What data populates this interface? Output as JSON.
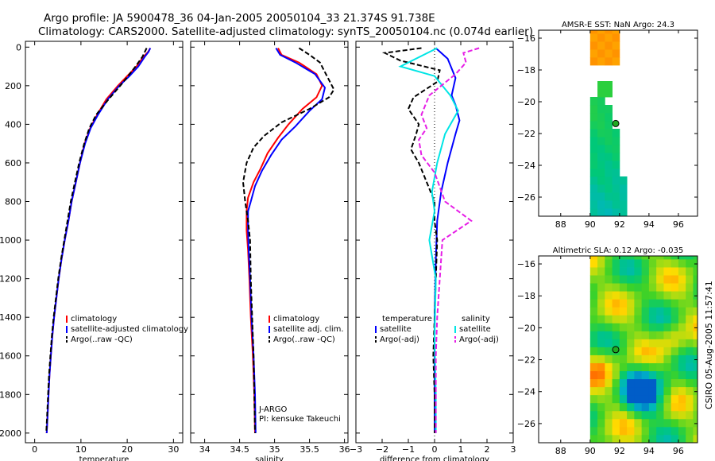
{
  "header": {
    "line1": "Argo profile: JA 5900478_36 04-Jan-2005 20050104_33 21.374S 91.738E",
    "line2": "Climatology: CARS2000. Satellite-adjusted climatology: synTS_20050104.nc (0.074d earlier)"
  },
  "side_label": "CSIRO 05-Aug-2005 11:57:41",
  "colors": {
    "red": "#ff0000",
    "blue": "#0000ff",
    "black": "#000000",
    "cyan": "#00e5e5",
    "magenta": "#e61ee6"
  },
  "chart_data": [
    {
      "type": "line",
      "id": "temperature",
      "xlabel": "temperature",
      "xlim": [
        -2,
        32
      ],
      "ylim": [
        2050,
        -30
      ],
      "x_ticks": [
        0,
        10,
        20,
        30
      ],
      "y_ticks": [
        0,
        200,
        400,
        600,
        800,
        1000,
        1200,
        1400,
        1600,
        1800,
        2000
      ],
      "legend": [
        "climatology",
        "satellite-adjusted climatology",
        "Argo(..raw -QC)"
      ],
      "series": [
        {
          "name": "climatology",
          "color": "red",
          "dash": false,
          "points": [
            [
              25,
              5
            ],
            [
              24.5,
              25
            ],
            [
              23.5,
              50
            ],
            [
              22,
              100
            ],
            [
              20,
              150
            ],
            [
              18,
              200
            ],
            [
              15.5,
              270
            ],
            [
              13.5,
              350
            ],
            [
              12,
              420
            ],
            [
              10.8,
              500
            ],
            [
              9.8,
              600
            ],
            [
              8.9,
              700
            ],
            [
              8,
              800
            ],
            [
              7.3,
              900
            ],
            [
              6.5,
              1000
            ],
            [
              5.8,
              1100
            ],
            [
              5.2,
              1200
            ],
            [
              4.7,
              1300
            ],
            [
              4.2,
              1400
            ],
            [
              3.8,
              1500
            ],
            [
              3.5,
              1600
            ],
            [
              3.2,
              1700
            ],
            [
              3,
              1800
            ],
            [
              2.8,
              1900
            ],
            [
              2.6,
              2000
            ]
          ]
        },
        {
          "name": "satellite-adjusted climatology",
          "color": "blue",
          "dash": false,
          "points": [
            [
              25,
              5
            ],
            [
              24.6,
              25
            ],
            [
              23.8,
              50
            ],
            [
              22.4,
              100
            ],
            [
              20.5,
              150
            ],
            [
              18.3,
              200
            ],
            [
              15.8,
              270
            ],
            [
              13.7,
              350
            ],
            [
              12.1,
              420
            ],
            [
              10.9,
              500
            ],
            [
              9.8,
              600
            ],
            [
              8.9,
              700
            ],
            [
              8,
              800
            ],
            [
              7.3,
              900
            ],
            [
              6.5,
              1000
            ],
            [
              5.8,
              1100
            ],
            [
              5.2,
              1200
            ],
            [
              4.7,
              1300
            ],
            [
              4.2,
              1400
            ],
            [
              3.8,
              1500
            ],
            [
              3.5,
              1600
            ],
            [
              3.2,
              1700
            ],
            [
              3,
              1800
            ],
            [
              2.8,
              1900
            ],
            [
              2.6,
              2000
            ]
          ]
        },
        {
          "name": "Argo(..raw -QC)",
          "color": "black",
          "dash": true,
          "points": [
            [
              24.2,
              5
            ],
            [
              23.8,
              25
            ],
            [
              23.3,
              50
            ],
            [
              21.8,
              100
            ],
            [
              20.2,
              150
            ],
            [
              18.5,
              200
            ],
            [
              16,
              270
            ],
            [
              13.3,
              350
            ],
            [
              11.8,
              420
            ],
            [
              10.7,
              500
            ],
            [
              9.6,
              600
            ],
            [
              8.7,
              700
            ],
            [
              7.8,
              800
            ],
            [
              7.1,
              900
            ],
            [
              6.4,
              1000
            ],
            [
              5.7,
              1100
            ],
            [
              5.1,
              1200
            ],
            [
              4.6,
              1300
            ],
            [
              4.1,
              1400
            ],
            [
              3.7,
              1500
            ],
            [
              3.4,
              1600
            ],
            [
              3.1,
              1700
            ],
            [
              2.9,
              1800
            ],
            [
              2.7,
              1900
            ],
            [
              2.5,
              2000
            ]
          ]
        }
      ]
    },
    {
      "type": "line",
      "id": "salinity",
      "xlabel": "salinity",
      "xlim": [
        33.8,
        36.05
      ],
      "ylim": [
        2050,
        -30
      ],
      "x_ticks": [
        34,
        34.5,
        35,
        35.5,
        36
      ],
      "legend": [
        "climatology",
        "satellite adj. clim.",
        "Argo(..raw -QC)"
      ],
      "annotations": [
        "J-ARGO",
        "PI: kensuke Takeuchi"
      ],
      "series": [
        {
          "name": "climatology",
          "color": "red",
          "dash": false,
          "points": [
            [
              35.05,
              5
            ],
            [
              35.1,
              40
            ],
            [
              35.35,
              80
            ],
            [
              35.6,
              140
            ],
            [
              35.68,
              200
            ],
            [
              35.6,
              260
            ],
            [
              35.4,
              320
            ],
            [
              35.2,
              400
            ],
            [
              35.05,
              470
            ],
            [
              34.9,
              550
            ],
            [
              34.8,
              630
            ],
            [
              34.7,
              700
            ],
            [
              34.62,
              780
            ],
            [
              34.6,
              850
            ],
            [
              34.6,
              950
            ],
            [
              34.62,
              1050
            ],
            [
              34.64,
              1200
            ],
            [
              34.66,
              1400
            ],
            [
              34.69,
              1600
            ],
            [
              34.71,
              1800
            ],
            [
              34.72,
              2000
            ]
          ]
        },
        {
          "name": "satellite adj. clim.",
          "color": "blue",
          "dash": false,
          "points": [
            [
              35.02,
              5
            ],
            [
              35.08,
              40
            ],
            [
              35.3,
              80
            ],
            [
              35.58,
              140
            ],
            [
              35.72,
              210
            ],
            [
              35.68,
              270
            ],
            [
              35.5,
              330
            ],
            [
              35.3,
              410
            ],
            [
              35.1,
              480
            ],
            [
              34.95,
              560
            ],
            [
              34.82,
              640
            ],
            [
              34.72,
              720
            ],
            [
              34.66,
              800
            ],
            [
              34.62,
              850
            ],
            [
              34.62,
              950
            ],
            [
              34.63,
              1050
            ],
            [
              34.65,
              1200
            ],
            [
              34.67,
              1400
            ],
            [
              34.7,
              1600
            ],
            [
              34.72,
              1800
            ],
            [
              34.73,
              2000
            ]
          ]
        },
        {
          "name": "Argo(..raw -QC)",
          "color": "black",
          "dash": true,
          "points": [
            [
              35.35,
              5
            ],
            [
              35.5,
              40
            ],
            [
              35.65,
              80
            ],
            [
              35.72,
              130
            ],
            [
              35.85,
              220
            ],
            [
              35.78,
              260
            ],
            [
              35.5,
              320
            ],
            [
              35.1,
              390
            ],
            [
              34.85,
              460
            ],
            [
              34.7,
              520
            ],
            [
              34.6,
              600
            ],
            [
              34.55,
              700
            ],
            [
              34.58,
              800
            ],
            [
              34.62,
              900
            ],
            [
              34.65,
              1000
            ],
            [
              34.66,
              1200
            ],
            [
              34.68,
              1400
            ],
            [
              34.7,
              1600
            ],
            [
              34.71,
              1800
            ],
            [
              34.72,
              2000
            ]
          ]
        }
      ]
    },
    {
      "type": "line",
      "id": "difference",
      "xlabel": "difference from climatology",
      "xlim": [
        -3,
        3
      ],
      "ylim": [
        2050,
        -30
      ],
      "x_ticks": [
        -3,
        -2,
        -1,
        0,
        1,
        2,
        3
      ],
      "legend_left": {
        "title": "temperature",
        "items": [
          "satellite",
          "Argo(-adj)"
        ]
      },
      "legend_right": {
        "title": "salinity",
        "items": [
          "satellite",
          "Argo(-adj)"
        ]
      },
      "series": [
        {
          "name": "temperature satellite",
          "color": "blue",
          "dash": false,
          "points": [
            [
              0.05,
              5
            ],
            [
              0.5,
              60
            ],
            [
              0.8,
              160
            ],
            [
              0.65,
              250
            ],
            [
              0.8,
              300
            ],
            [
              0.95,
              380
            ],
            [
              0.8,
              450
            ],
            [
              0.5,
              600
            ],
            [
              0.25,
              750
            ],
            [
              0.1,
              900
            ],
            [
              0.05,
              1100
            ],
            [
              0,
              1400
            ],
            [
              0,
              1700
            ],
            [
              0,
              2000
            ]
          ]
        },
        {
          "name": "temperature Argo(-adj)",
          "color": "black",
          "dash": true,
          "points": [
            [
              -0.5,
              5
            ],
            [
              -1.9,
              30
            ],
            [
              -1.3,
              70
            ],
            [
              0.2,
              120
            ],
            [
              0.1,
              180
            ],
            [
              -0.8,
              260
            ],
            [
              -1,
              320
            ],
            [
              -0.6,
              400
            ],
            [
              -0.7,
              450
            ],
            [
              -0.9,
              530
            ],
            [
              -0.6,
              600
            ],
            [
              -0.3,
              700
            ],
            [
              0,
              800
            ],
            [
              0,
              900
            ],
            [
              0.1,
              1000
            ],
            [
              0.05,
              1200
            ],
            [
              0,
              1400
            ],
            [
              -0.05,
              1600
            ],
            [
              0,
              1800
            ],
            [
              0,
              2000
            ]
          ]
        },
        {
          "name": "salinity satellite",
          "color": "cyan",
          "dash": false,
          "points": [
            [
              0.1,
              5
            ],
            [
              -1.3,
              100
            ],
            [
              0,
              150
            ],
            [
              0.6,
              250
            ],
            [
              0.9,
              330
            ],
            [
              0.4,
              450
            ],
            [
              0.1,
              600
            ],
            [
              -0.1,
              750
            ],
            [
              0,
              850
            ],
            [
              -0.2,
              1000
            ],
            [
              0.05,
              1200
            ],
            [
              0,
              1500
            ],
            [
              0.05,
              1800
            ],
            [
              0.05,
              2000
            ]
          ]
        },
        {
          "name": "salinity Argo(-adj)",
          "color": "magenta",
          "dash": true,
          "points": [
            [
              1.7,
              5
            ],
            [
              1.1,
              30
            ],
            [
              1.2,
              80
            ],
            [
              0.8,
              140
            ],
            [
              -0.2,
              250
            ],
            [
              -0.5,
              350
            ],
            [
              -0.3,
              420
            ],
            [
              -0.6,
              480
            ],
            [
              -0.5,
              560
            ],
            [
              0,
              650
            ],
            [
              0.4,
              800
            ],
            [
              1.4,
              900
            ],
            [
              0.3,
              1000
            ],
            [
              0.2,
              1200
            ],
            [
              0.1,
              1400
            ],
            [
              0.05,
              1600
            ],
            [
              0.05,
              2000
            ]
          ]
        }
      ]
    },
    {
      "type": "heatmap",
      "id": "sst",
      "title": "AMSR-E SST: NaN Argo: 24.3",
      "xlim": [
        86.5,
        97.3
      ],
      "ylim": [
        -27.2,
        -15.5
      ],
      "x_ticks": [
        88,
        90,
        92,
        94,
        96
      ],
      "y_ticks": [
        -16,
        -18,
        -20,
        -22,
        -24,
        -26
      ],
      "marker": {
        "lon": 91.74,
        "lat": -21.37
      }
    },
    {
      "type": "heatmap",
      "id": "sla",
      "title": "Altimetric SLA: 0.12 Argo: -0.035",
      "xlim": [
        86.5,
        97.3
      ],
      "ylim": [
        -27.2,
        -15.5
      ],
      "x_ticks": [
        88,
        90,
        92,
        94,
        96
      ],
      "y_ticks": [
        -16,
        -18,
        -20,
        -22,
        -24,
        -26
      ],
      "marker": {
        "lon": 91.74,
        "lat": -21.37
      }
    }
  ]
}
